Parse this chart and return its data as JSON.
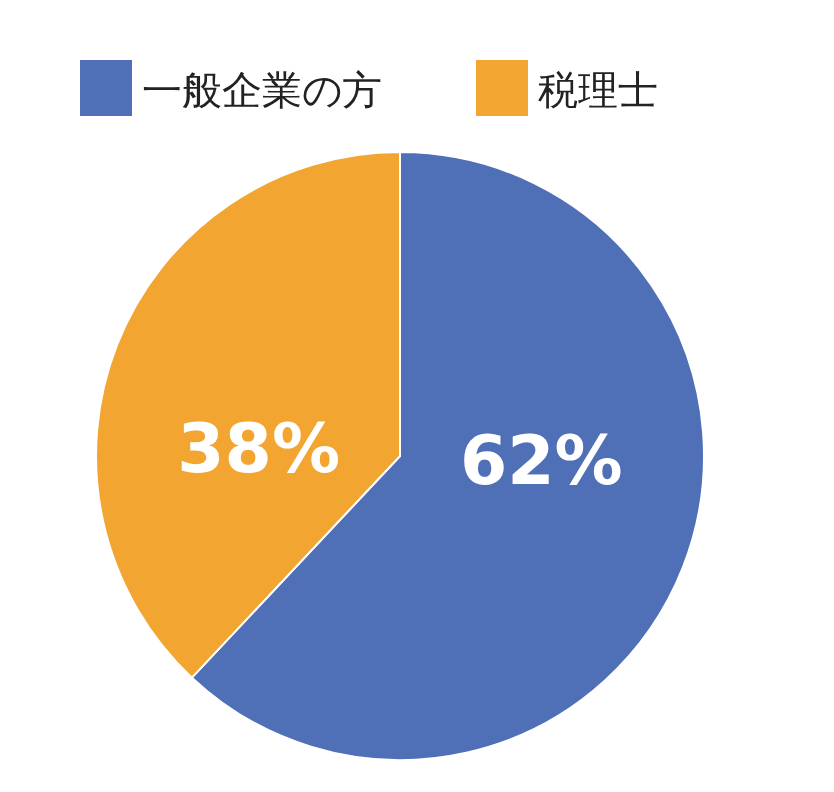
{
  "chart_data": {
    "type": "pie",
    "categories": [
      "一般企業の方",
      "税理士"
    ],
    "values": [
      62,
      38
    ],
    "colors": [
      "#4f6fb6",
      "#f2a531"
    ],
    "value_labels": [
      "62%",
      "38%"
    ],
    "legend": "top"
  }
}
